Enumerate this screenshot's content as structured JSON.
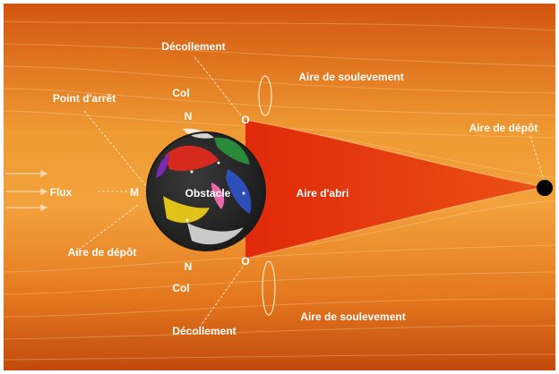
{
  "labels": {
    "decollement_top": "Décollement",
    "decollement_bottom": "Décollement",
    "aire_soulevement_top": "Aire de soulevement",
    "aire_soulevement_bottom": "Aire de soulevement",
    "point_arret": "Point d'arrêt",
    "col_top": "Col",
    "col_bottom": "Col",
    "n_top": "N",
    "n_bottom": "N",
    "o_top": "O",
    "o_bottom": "O",
    "aire_depot_right": "Aire de dépôt",
    "aire_depot_left": "Aire de dépôt",
    "flux": "Flux",
    "m": "M",
    "obstacle": "Obstacle",
    "aire_abri": "Aire d'abri"
  },
  "colors": {
    "background_dark": "#c74a0c",
    "background_light": "#f3a23c",
    "shelter_zone": "#e0320e",
    "label_text": "#ffffff",
    "depot_marker": "#000000"
  }
}
